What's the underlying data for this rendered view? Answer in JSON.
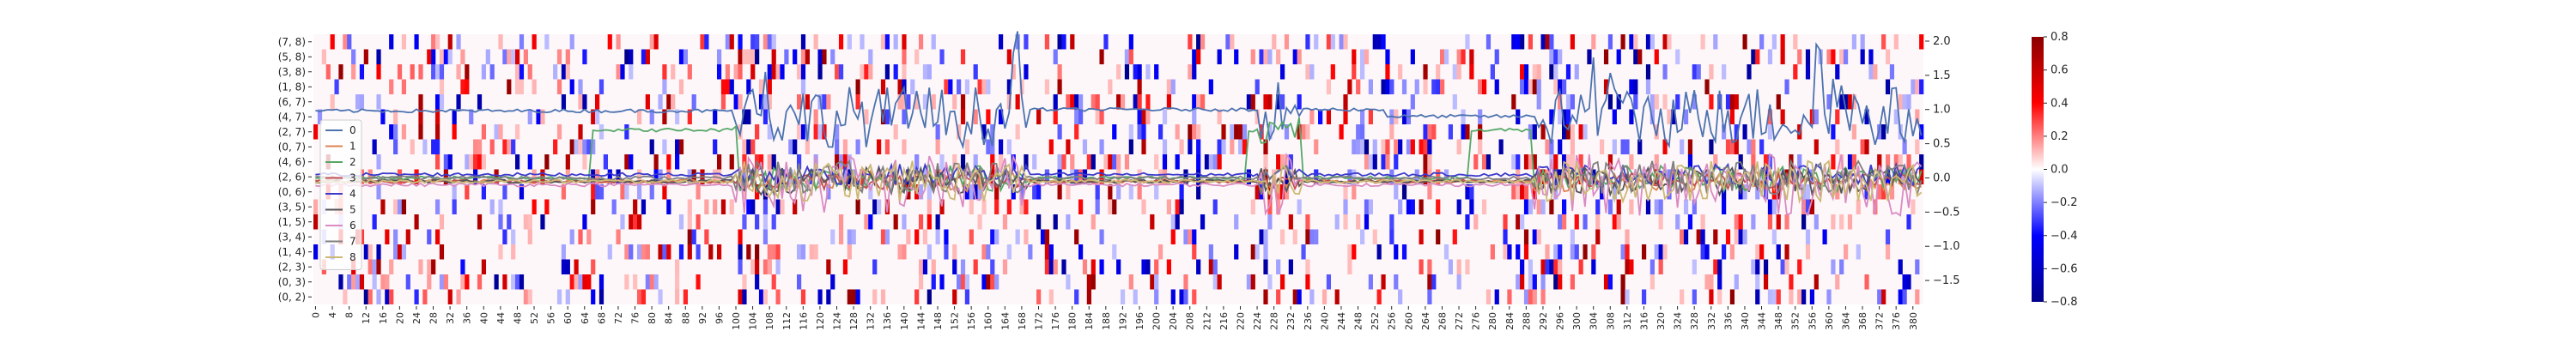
{
  "chart_data": [
    {
      "type": "heatmap",
      "title": "",
      "xlabel": "",
      "ylabel": "",
      "x_tick_labels": [
        "0",
        "4",
        "8",
        "12",
        "16",
        "20",
        "24",
        "28",
        "32",
        "36",
        "40",
        "44",
        "48",
        "52",
        "56",
        "60",
        "64",
        "68",
        "72",
        "76",
        "80",
        "84",
        "88",
        "92",
        "96",
        "100",
        "104",
        "108",
        "112",
        "116",
        "120",
        "124",
        "128",
        "132",
        "136",
        "140",
        "144",
        "148",
        "152",
        "156",
        "160",
        "164",
        "168",
        "172",
        "176",
        "180",
        "184",
        "188",
        "192",
        "196",
        "200",
        "204",
        "208",
        "212",
        "216",
        "220",
        "224",
        "228",
        "232",
        "236",
        "240",
        "244",
        "248",
        "252",
        "256",
        "260",
        "264",
        "268",
        "272",
        "276",
        "280",
        "284",
        "288",
        "292",
        "296",
        "300",
        "304",
        "308",
        "312",
        "316",
        "320",
        "324",
        "328",
        "332",
        "336",
        "340",
        "344",
        "348",
        "352",
        "356",
        "360",
        "364",
        "368",
        "372",
        "376",
        "380"
      ],
      "y_tick_labels": [
        "(7, 8)",
        "(5, 8)",
        "(3, 8)",
        "(1, 8)",
        "(6, 7)",
        "(4, 7)",
        "(2, 7)",
        "(0, 7)",
        "(4, 6)",
        "(2, 6)",
        "(0, 6)",
        "(3, 5)",
        "(1, 5)",
        "(3, 4)",
        "(1, 4)",
        "(2, 3)",
        "(0, 3)",
        "(0, 2)"
      ],
      "n_columns": 383,
      "colorbar": {
        "min": -0.8,
        "max": 0.8,
        "ticks": [
          "0.8",
          "0.6",
          "0.4",
          "0.2",
          "0.0",
          "−0.2",
          "−0.4",
          "−0.6",
          "−0.8"
        ],
        "colors": [
          "#00008b",
          "#0000ff",
          "#ffffff",
          "#ff0000",
          "#8b0000"
        ]
      },
      "grid": false
    },
    {
      "type": "line",
      "title": "",
      "xlabel": "",
      "ylabel": "",
      "ylim": [
        -1.85,
        2.1
      ],
      "y_ticks": [
        "2.0",
        "1.5",
        "1.0",
        "0.5",
        "0.0",
        "−0.5",
        "−1.0",
        "−1.5"
      ],
      "legend": {
        "placement": "left"
      },
      "series": [
        {
          "name": "0",
          "color": "#4c72b0",
          "baseline": 1.0,
          "noise": 0.45
        },
        {
          "name": "1",
          "color": "#dd8452",
          "baseline": -0.05,
          "noise": 0.15
        },
        {
          "name": "2",
          "color": "#55a868",
          "baseline": 0.0,
          "noise": 0.2
        },
        {
          "name": "3",
          "color": "#c44e52",
          "baseline": -0.05,
          "noise": 0.12
        },
        {
          "name": "4",
          "color": "#3b3bcc",
          "baseline": 0.05,
          "noise": 0.15
        },
        {
          "name": "5",
          "color": "#55555a",
          "baseline": -0.05,
          "noise": 0.2
        },
        {
          "name": "6",
          "color": "#da8bc3",
          "baseline": -0.1,
          "noise": 0.45
        },
        {
          "name": "7",
          "color": "#7f7f7f",
          "baseline": 0.0,
          "noise": 0.25
        },
        {
          "name": "8",
          "color": "#ccb974",
          "baseline": -0.05,
          "noise": 0.3
        }
      ]
    }
  ]
}
